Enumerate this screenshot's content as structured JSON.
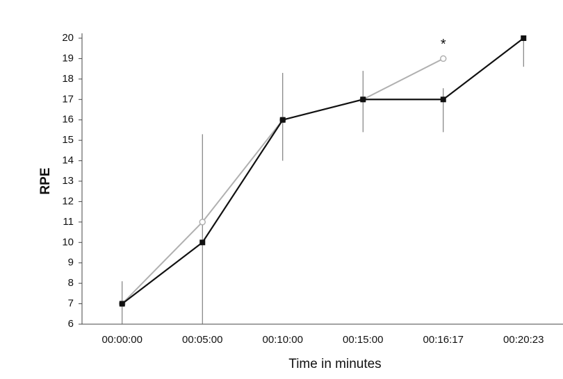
{
  "chart_data": {
    "type": "line",
    "x_label": "Time in minutes",
    "y_label": "RPE",
    "categories": [
      "00:00:00",
      "00:05:00",
      "00:10:00",
      "00:15:00",
      "00:16:17",
      "00:20:23"
    ],
    "series": [
      {
        "color": "#111111",
        "marker": "square",
        "values": [
          7,
          10,
          16,
          17,
          17,
          20
        ],
        "error_plus": [
          1.1,
          5.3,
          2.3,
          1.4,
          0.55,
          null
        ],
        "error_minus": [
          1.1,
          5.3,
          2.0,
          1.6,
          1.6,
          1.4
        ]
      },
      {
        "color": "#b0b0b0",
        "marker": "circle",
        "values": [
          7,
          11,
          16,
          17,
          19,
          null
        ]
      }
    ],
    "annotations": [
      {
        "text": "*",
        "category": 4,
        "y": 19.8
      }
    ],
    "ylim": [
      6,
      20
    ],
    "yticks": [
      6,
      7,
      8,
      9,
      10,
      11,
      12,
      13,
      14,
      15,
      16,
      17,
      18,
      19,
      20
    ]
  }
}
